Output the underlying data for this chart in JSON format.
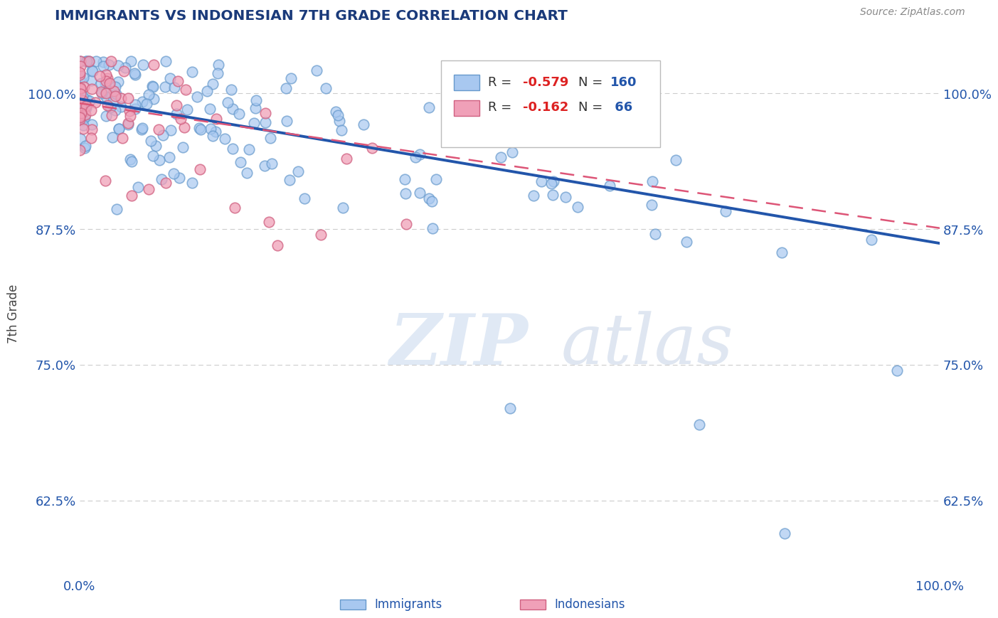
{
  "title": "IMMIGRANTS VS INDONESIAN 7TH GRADE CORRELATION CHART",
  "source_text": "Source: ZipAtlas.com",
  "ylabel": "7th Grade",
  "watermark_zip": "ZIP",
  "watermark_atlas": "atlas",
  "xmin": 0.0,
  "xmax": 1.0,
  "ymin": 0.555,
  "ymax": 1.04,
  "yticks": [
    0.625,
    0.75,
    0.875,
    1.0
  ],
  "ytick_labels": [
    "62.5%",
    "75.0%",
    "87.5%",
    "100.0%"
  ],
  "blue_R": -0.579,
  "blue_N": 160,
  "pink_R": -0.162,
  "pink_N": 66,
  "blue_color": "#A8C8F0",
  "blue_edge_color": "#6699CC",
  "pink_color": "#F0A0B8",
  "pink_edge_color": "#D06080",
  "blue_line_color": "#2255AA",
  "pink_line_color": "#DD5577",
  "blue_trend_x0": 0.0,
  "blue_trend_y0": 0.995,
  "blue_trend_x1": 1.0,
  "blue_trend_y1": 0.862,
  "pink_trend_x0": 0.0,
  "pink_trend_y0": 0.991,
  "pink_trend_x1": 1.0,
  "pink_trend_y1": 0.876,
  "background_color": "#FFFFFF",
  "grid_color": "#CCCCCC",
  "title_color": "#1A3A7A",
  "axis_label_color": "#444444",
  "tick_label_color": "#2255AA",
  "legend_R_color": "#DD2222",
  "legend_N_color": "#2255AA"
}
